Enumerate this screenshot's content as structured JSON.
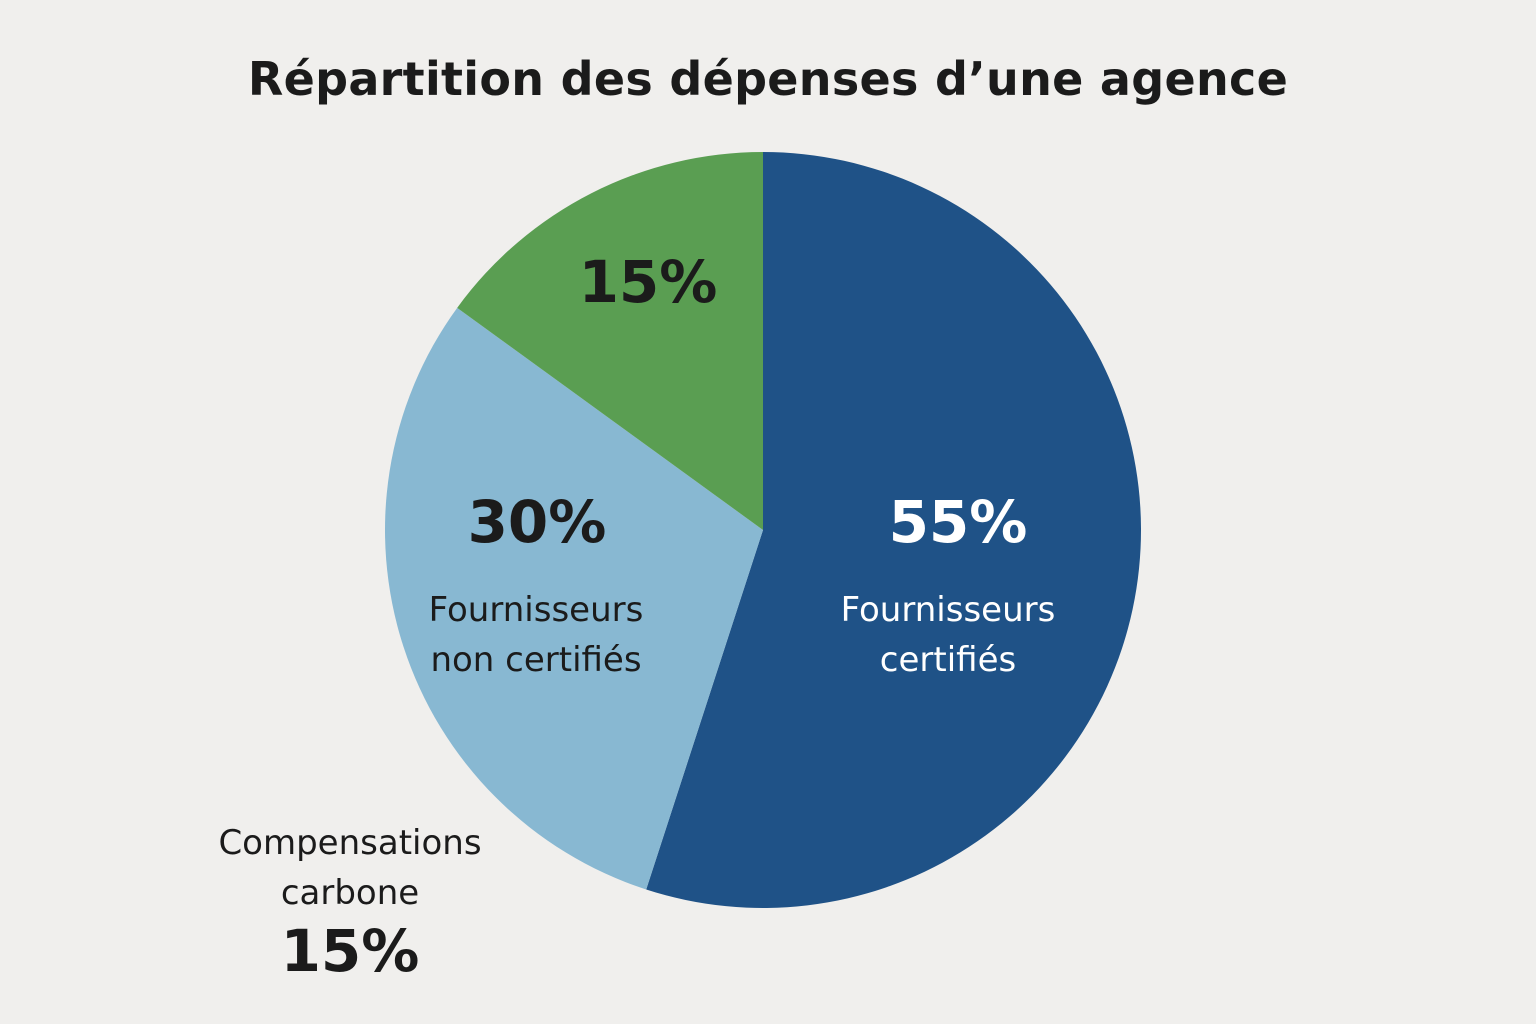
{
  "chart_data": {
    "type": "pie",
    "title": "Répartition des dépenses d’une agence",
    "slices": [
      {
        "name_lines": [
          "Fournisseurs",
          "certifiés"
        ],
        "percent_label": "55%",
        "value": 55,
        "color": "#1f5287",
        "text_color": "#ffffff"
      },
      {
        "name_lines": [
          "Fournisseurs",
          "non certifiés"
        ],
        "percent_label": "30%",
        "value": 30,
        "color": "#88b8d2",
        "text_color": "#1b1b1b"
      },
      {
        "name_lines": [
          "Compensations",
          "carbone"
        ],
        "percent_label": "15%",
        "value": 15,
        "color": "#5a9e52",
        "text_color": "#1b1b1b"
      }
    ]
  }
}
